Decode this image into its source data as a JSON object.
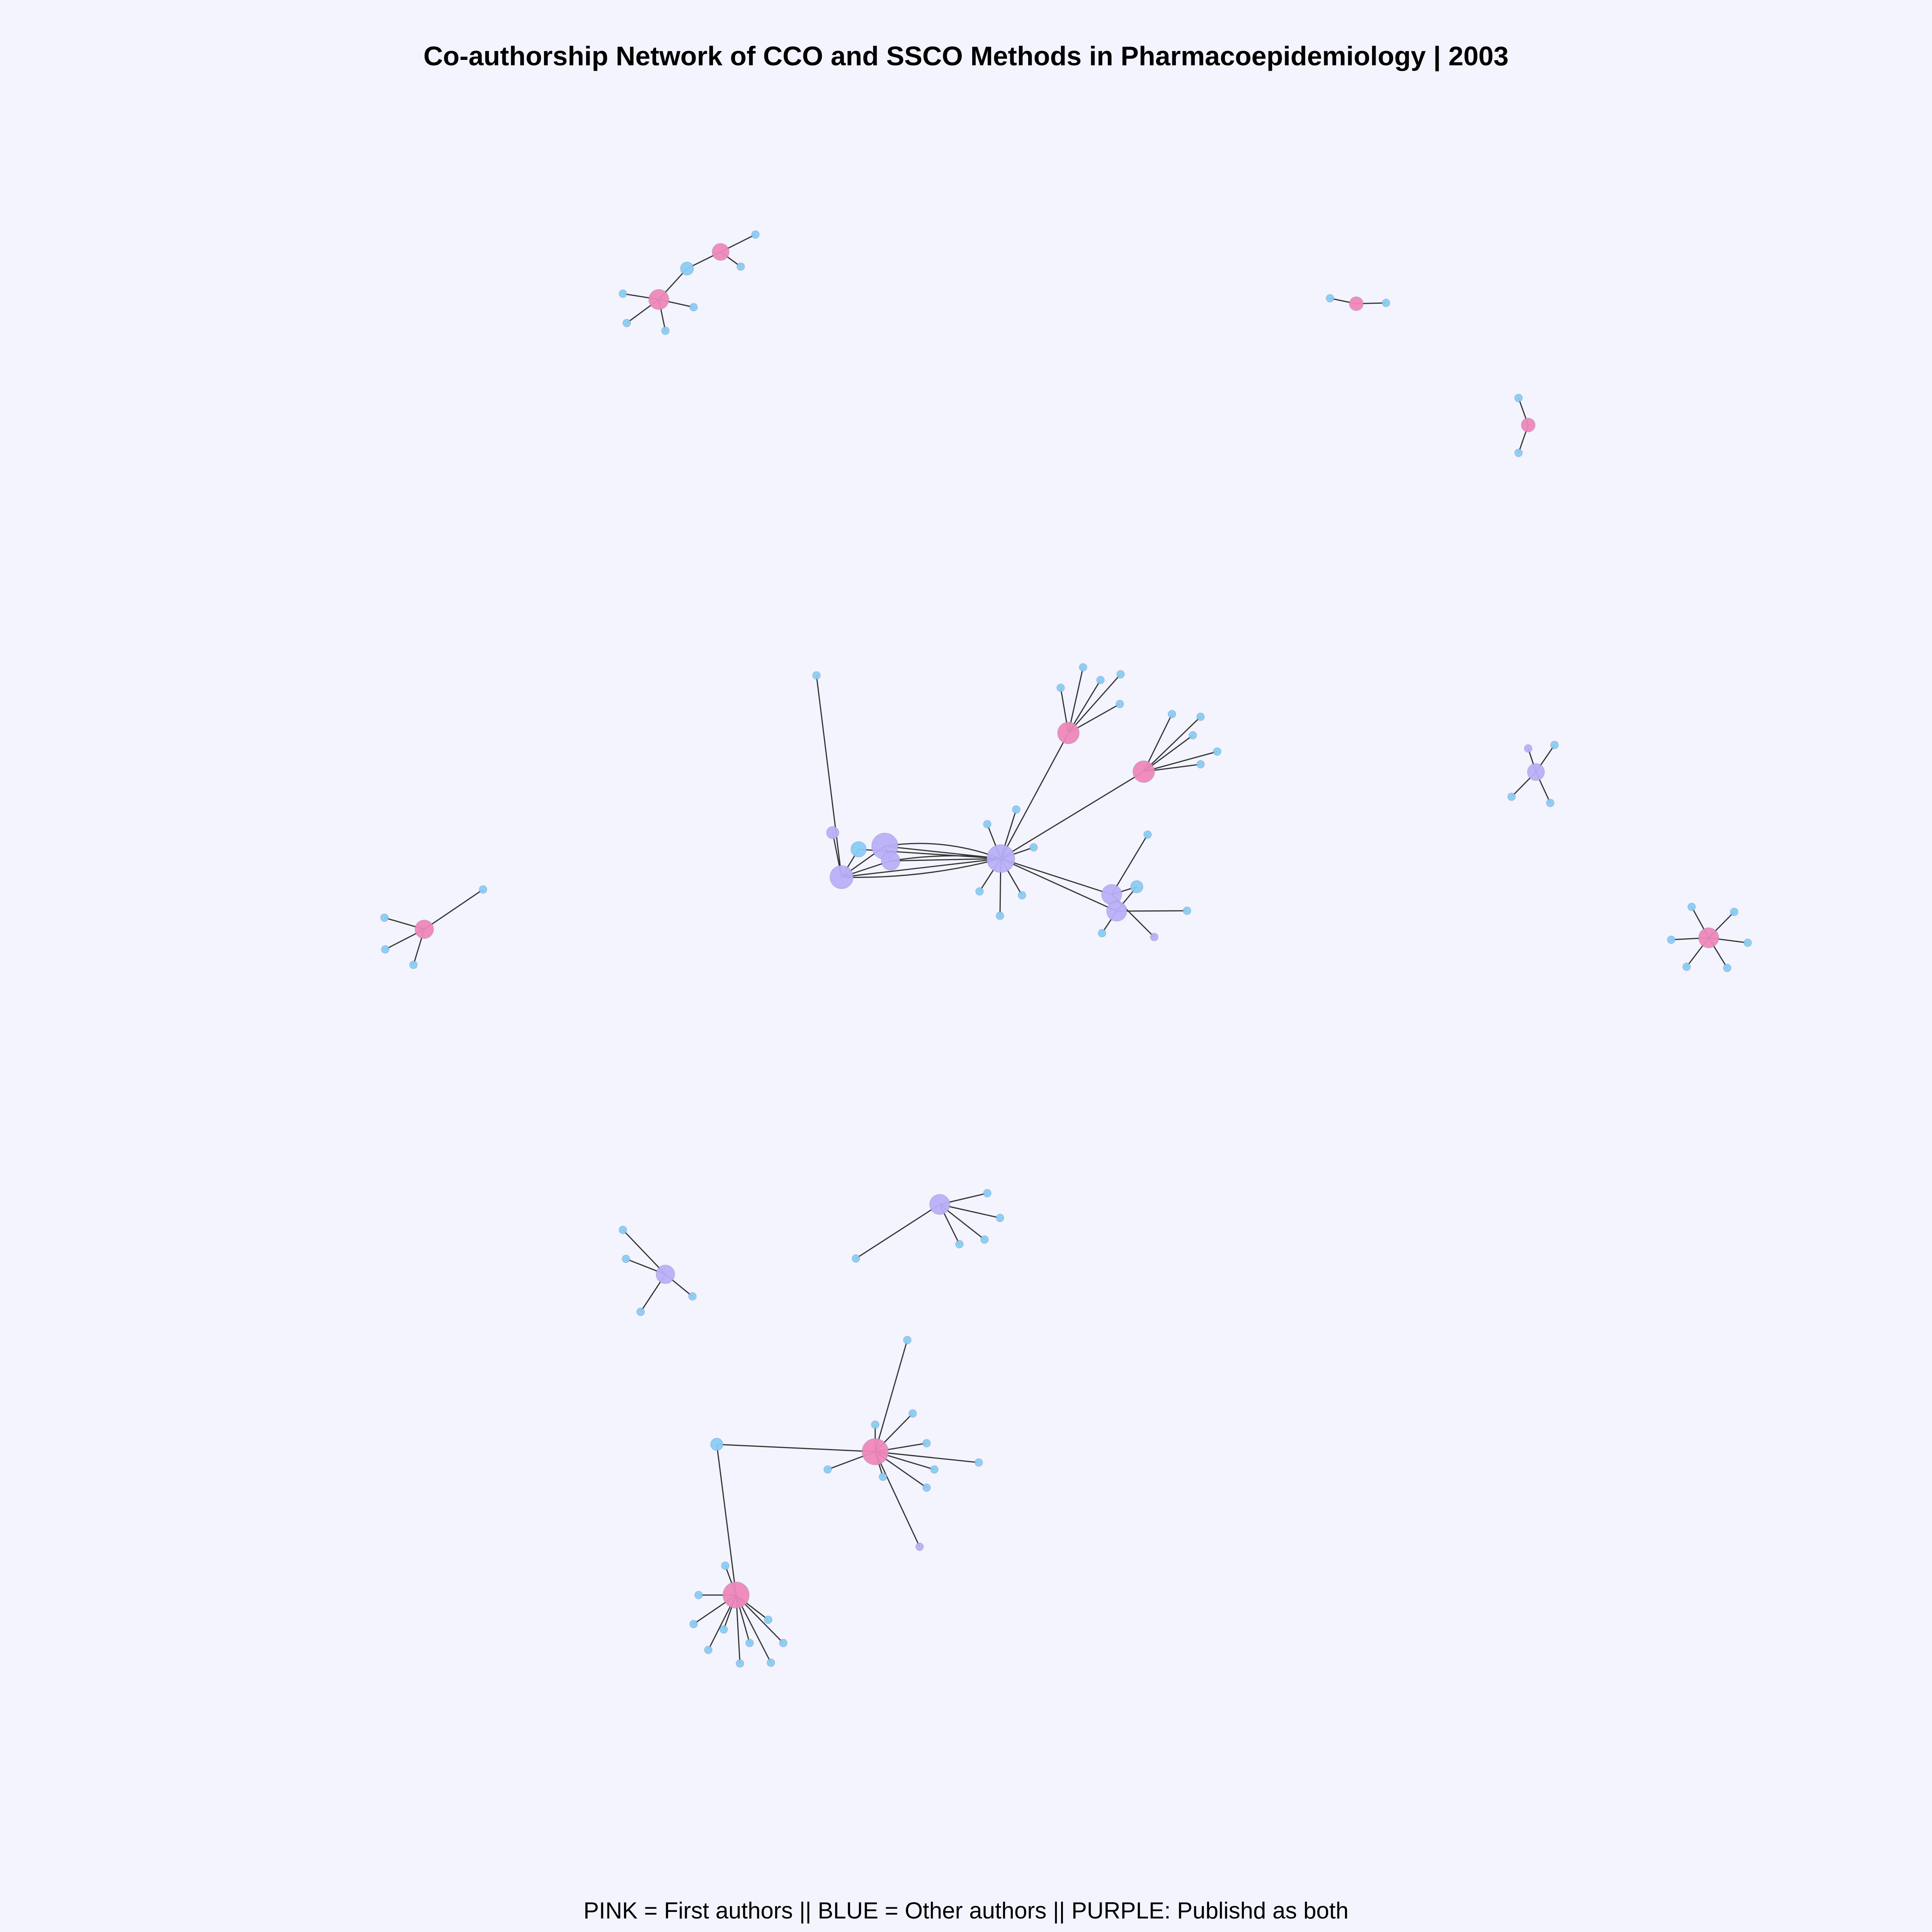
{
  "title": "Co-authorship Network of CCO and SSCO Methods in Pharmacoepidemiology |  2003",
  "caption": "PINK = First authors || BLUE = Other authors || PURPLE: Publishd as both",
  "colors": {
    "first_author": "#ee88bb",
    "other_author": "#88ccf5",
    "both": "#b8b0f8",
    "edge": "#333333",
    "background": "#f3f4fd"
  },
  "legend": {
    "pink": "First authors",
    "blue": "Other authors",
    "purple": "Publishd as both"
  },
  "clusters": [
    {
      "id": "cluster-a",
      "hub_role": "first_author",
      "hubs": 2,
      "members": 10
    },
    {
      "id": "cluster-b",
      "hub_role": "first_author",
      "hubs": 1,
      "members": 3
    },
    {
      "id": "cluster-c",
      "hub_role": "first_author",
      "hubs": 1,
      "members": 3
    },
    {
      "id": "cluster-d",
      "hub_role": "mixed",
      "hubs": 7,
      "members": 39
    },
    {
      "id": "cluster-e",
      "hub_role": "both",
      "hubs": 1,
      "members": 5
    },
    {
      "id": "cluster-f",
      "hub_role": "first_author",
      "hubs": 1,
      "members": 7
    },
    {
      "id": "cluster-g",
      "hub_role": "first_author",
      "hubs": 1,
      "members": 5
    },
    {
      "id": "cluster-h",
      "hub_role": "both",
      "hubs": 1,
      "members": 7
    },
    {
      "id": "cluster-i",
      "hub_role": "both",
      "hubs": 1,
      "members": 5
    },
    {
      "id": "cluster-j",
      "hub_role": "first_author",
      "hubs": 3,
      "members": 26
    }
  ]
}
